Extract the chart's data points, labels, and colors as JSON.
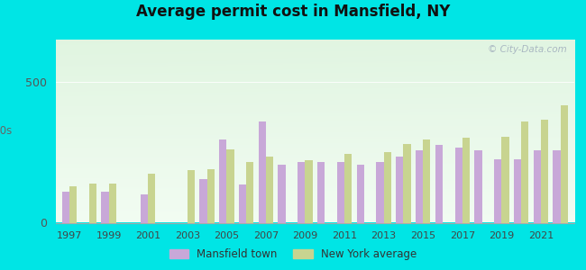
{
  "title": "Average permit cost in Mansfield, NY",
  "background_outer": "#00e5e5",
  "years": [
    1997,
    1998,
    1999,
    2000,
    2001,
    2002,
    2003,
    2004,
    2005,
    2006,
    2007,
    2008,
    2009,
    2010,
    2011,
    2012,
    2013,
    2014,
    2015,
    2016,
    2017,
    2018,
    2019,
    2020,
    2021,
    2022
  ],
  "mansfield": [
    110,
    0,
    110,
    0,
    100,
    0,
    0,
    155,
    295,
    135,
    360,
    205,
    215,
    215,
    215,
    205,
    215,
    235,
    255,
    275,
    265,
    255,
    225,
    225,
    255,
    255
  ],
  "ny_avg": [
    130,
    140,
    140,
    0,
    175,
    0,
    185,
    190,
    260,
    215,
    235,
    0,
    220,
    0,
    245,
    0,
    250,
    280,
    295,
    0,
    300,
    0,
    305,
    360,
    365,
    415
  ],
  "mansfield_color": "#c8a8d8",
  "ny_avg_color": "#c8d490",
  "ylim_max": 650,
  "bar_width": 0.38,
  "watermark": "© City-Data.com",
  "legend_label1": "Mansfield town",
  "legend_label2": "New York average"
}
